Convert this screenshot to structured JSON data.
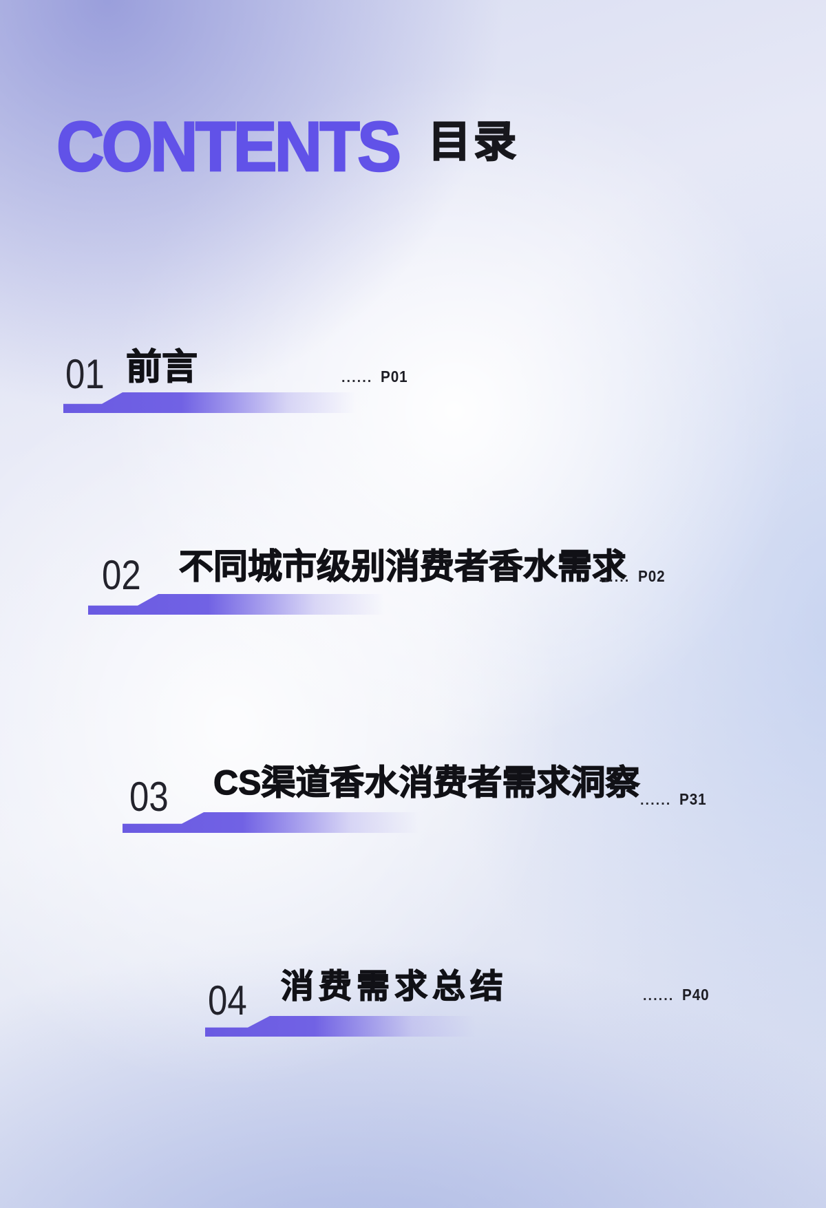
{
  "header": {
    "title_en": "CONTENTS",
    "title_zh": "目录"
  },
  "colors": {
    "accent_purple": "#6152e8",
    "bar_purple": "#6a5ae2",
    "text_dark": "#16161c"
  },
  "toc": {
    "items": [
      {
        "number": "01",
        "title": "前言",
        "dots": "......",
        "page": "P01"
      },
      {
        "number": "02",
        "title": "不同城市级别消费者香水需求",
        "dots": "......",
        "page": "P02"
      },
      {
        "number": "03",
        "title": "CS渠道香水消费者需求洞察",
        "dots": "......",
        "page": "P31"
      },
      {
        "number": "04",
        "title": "消费需求总结",
        "dots": "......",
        "page": "P40"
      }
    ]
  }
}
